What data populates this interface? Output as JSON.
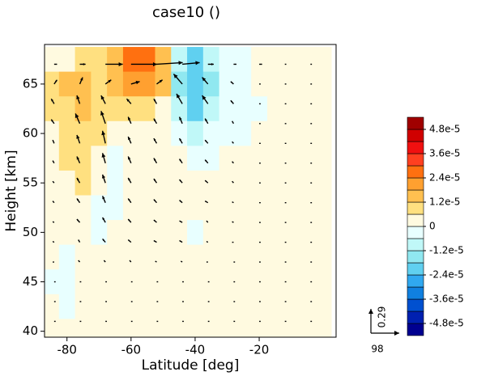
{
  "chart_data": {
    "type": "contour-vector",
    "title": "case10 ()",
    "xlabel": "Latitude [deg]",
    "ylabel": "Height [km]",
    "xlim": [
      -87,
      4
    ],
    "ylim": [
      39.4,
      69
    ],
    "xticks": [
      -80,
      -60,
      -40,
      -20
    ],
    "yticks": [
      40,
      45,
      50,
      55,
      60,
      65
    ],
    "field": {
      "x": [
        -85,
        -80,
        -75,
        -70,
        -65,
        -60,
        -55,
        -50,
        -45,
        -40,
        -35,
        -30,
        -25,
        -20,
        -15,
        -10,
        -5,
        0
      ],
      "y": [
        67.5,
        65,
        62.5,
        60,
        57.5,
        55,
        52.5,
        50,
        47.5,
        45,
        42.5,
        40
      ],
      "values": [
        [
          3e-06,
          3e-06,
          8e-06,
          8e-06,
          1.5e-05,
          2.6e-05,
          2.8e-05,
          1.5e-05,
          -8e-06,
          -2e-05,
          -8e-06,
          -3e-06,
          -3e-06,
          3e-06,
          3e-06,
          3e-06,
          3e-06,
          3e-06
        ],
        [
          1e-05,
          1.3e-05,
          1.5e-05,
          8e-06,
          1.5e-05,
          2e-05,
          2.2e-05,
          1.2e-05,
          -1.5e-05,
          -2.4e-05,
          -1.3e-05,
          -5e-06,
          -3e-06,
          3e-06,
          3e-06,
          3e-06,
          3e-06,
          3e-06
        ],
        [
          8e-06,
          1e-05,
          1.3e-05,
          8e-06,
          8e-06,
          1e-05,
          8e-06,
          3e-06,
          -8e-06,
          -2e-05,
          -1e-05,
          -3e-06,
          -3e-06,
          -3e-06,
          3e-06,
          3e-06,
          3e-06,
          3e-06
        ],
        [
          3e-06,
          8e-06,
          1e-05,
          8e-06,
          3e-06,
          3e-06,
          3e-06,
          3e-06,
          -3e-06,
          -8e-06,
          -3e-06,
          -3e-06,
          -3e-06,
          3e-06,
          3e-06,
          3e-06,
          3e-06,
          3e-06
        ],
        [
          3e-06,
          8e-06,
          8e-06,
          3e-06,
          -3e-06,
          3e-06,
          3e-06,
          3e-06,
          3e-06,
          -3e-06,
          -3e-06,
          3e-06,
          3e-06,
          3e-06,
          3e-06,
          3e-06,
          3e-06,
          3e-06
        ],
        [
          3e-06,
          3e-06,
          8e-06,
          3e-06,
          -3e-06,
          3e-06,
          3e-06,
          3e-06,
          3e-06,
          3e-06,
          3e-06,
          3e-06,
          3e-06,
          3e-06,
          3e-06,
          3e-06,
          3e-06,
          3e-06
        ],
        [
          3e-06,
          3e-06,
          3e-06,
          -3e-06,
          -3e-06,
          3e-06,
          3e-06,
          3e-06,
          3e-06,
          3e-06,
          3e-06,
          3e-06,
          3e-06,
          3e-06,
          3e-06,
          3e-06,
          3e-06,
          3e-06
        ],
        [
          3e-06,
          3e-06,
          3e-06,
          -3e-06,
          3e-06,
          3e-06,
          3e-06,
          3e-06,
          3e-06,
          -3e-06,
          3e-06,
          3e-06,
          3e-06,
          3e-06,
          3e-06,
          3e-06,
          3e-06,
          3e-06
        ],
        [
          3e-06,
          -3e-06,
          3e-06,
          3e-06,
          3e-06,
          3e-06,
          3e-06,
          3e-06,
          3e-06,
          3e-06,
          3e-06,
          3e-06,
          3e-06,
          3e-06,
          3e-06,
          3e-06,
          3e-06,
          3e-06
        ],
        [
          -3e-06,
          -3e-06,
          3e-06,
          3e-06,
          3e-06,
          3e-06,
          3e-06,
          3e-06,
          3e-06,
          3e-06,
          3e-06,
          3e-06,
          3e-06,
          3e-06,
          3e-06,
          3e-06,
          3e-06,
          3e-06
        ],
        [
          3e-06,
          -3e-06,
          3e-06,
          3e-06,
          3e-06,
          3e-06,
          3e-06,
          3e-06,
          3e-06,
          3e-06,
          3e-06,
          3e-06,
          3e-06,
          3e-06,
          3e-06,
          3e-06,
          3e-06,
          3e-06
        ],
        [
          3e-06,
          3e-06,
          3e-06,
          3e-06,
          3e-06,
          3e-06,
          3e-06,
          3e-06,
          3e-06,
          3e-06,
          3e-06,
          3e-06,
          3e-06,
          3e-06,
          3e-06,
          3e-06,
          3e-06,
          3e-06
        ]
      ]
    },
    "colorbar": {
      "levels": [
        -5.4e-05,
        -4.8e-05,
        -4.2e-05,
        -3.6e-05,
        -3e-05,
        -2.4e-05,
        -1.8e-05,
        -1.2e-05,
        -6e-06,
        0,
        6e-06,
        1.2e-05,
        1.8e-05,
        2.4e-05,
        3e-05,
        3.6e-05,
        4.2e-05,
        4.8e-05,
        5.4e-05
      ],
      "colors": [
        "#000090",
        "#0020b0",
        "#0050d0",
        "#1080e0",
        "#30a8f0",
        "#60d0f0",
        "#90e8f0",
        "#c0f8f8",
        "#e8ffff",
        "#fffae0",
        "#ffe080",
        "#ffc050",
        "#ffa030",
        "#ff7010",
        "#ff4020",
        "#f01010",
        "#d00000",
        "#a00000"
      ],
      "ticks": [
        {
          "value": 4.8e-05,
          "label": "4.8e-5"
        },
        {
          "value": 3.6e-05,
          "label": "3.6e-5"
        },
        {
          "value": 2.4e-05,
          "label": "2.4e-5"
        },
        {
          "value": 1.2e-05,
          "label": "1.2e-5"
        },
        0,
        {
          "value": -1.2e-05,
          "label": "-1.2e-5"
        },
        {
          "value": -2.4e-05,
          "label": "-2.4e-5"
        },
        {
          "value": -3.6e-05,
          "label": "-3.6e-5"
        },
        {
          "value": -4.8e-05,
          "label": "-4.8e-5"
        }
      ]
    },
    "vectors": {
      "x": [
        -84,
        -76,
        -68,
        -60,
        -52,
        -44,
        -36,
        -28,
        -20,
        -12,
        -4
      ],
      "y": [
        67,
        65,
        63,
        61,
        59,
        57,
        55,
        53,
        51,
        49,
        47,
        45,
        43,
        41
      ],
      "u": [
        [
          10,
          20,
          60,
          90,
          90,
          60,
          20,
          10,
          10,
          5,
          5
        ],
        [
          10,
          10,
          20,
          30,
          20,
          -30,
          -20,
          -10,
          5,
          5,
          5
        ],
        [
          -10,
          -10,
          -15,
          -15,
          -10,
          -20,
          -20,
          -10,
          5,
          5,
          5
        ],
        [
          -10,
          -15,
          -15,
          -10,
          -10,
          -10,
          -10,
          -5,
          5,
          5,
          5
        ],
        [
          -5,
          -10,
          -10,
          -10,
          -10,
          -10,
          -10,
          -5,
          5,
          5,
          5
        ],
        [
          -5,
          -10,
          -10,
          -10,
          -10,
          -10,
          -10,
          -5,
          5,
          5,
          5
        ],
        [
          -5,
          -10,
          -10,
          -10,
          -10,
          -10,
          -10,
          -5,
          5,
          5,
          5
        ],
        [
          -5,
          -10,
          -10,
          -10,
          -10,
          -10,
          -10,
          -5,
          5,
          5,
          5
        ],
        [
          -5,
          -10,
          -10,
          -10,
          -10,
          -10,
          -5,
          -5,
          5,
          5,
          5
        ],
        [
          -5,
          -5,
          -10,
          -10,
          -10,
          -10,
          -5,
          -5,
          5,
          5,
          5
        ],
        [
          -5,
          -5,
          -5,
          -5,
          -5,
          -5,
          -5,
          5,
          5,
          5,
          5
        ],
        [
          5,
          5,
          5,
          5,
          5,
          5,
          5,
          5,
          5,
          5,
          5
        ],
        [
          5,
          5,
          5,
          5,
          5,
          5,
          5,
          5,
          5,
          5,
          5
        ],
        [
          5,
          5,
          5,
          5,
          5,
          5,
          5,
          5,
          5,
          5,
          5
        ]
      ],
      "v": [
        [
          0,
          0,
          0,
          0,
          0.02,
          0.02,
          0,
          0,
          0,
          0,
          0
        ],
        [
          0.05,
          0.08,
          0.05,
          0.03,
          0.05,
          0.12,
          0.08,
          0.03,
          0,
          0,
          0
        ],
        [
          0.06,
          0.1,
          0.1,
          0.06,
          0.06,
          0.12,
          0.1,
          0.04,
          0,
          0,
          0
        ],
        [
          0.05,
          0.12,
          0.15,
          0.08,
          0.06,
          0.08,
          0.06,
          0.03,
          0,
          0,
          0
        ],
        [
          0.04,
          0.1,
          0.15,
          0.08,
          0.06,
          0.06,
          0.04,
          0.02,
          0,
          0,
          0
        ],
        [
          0.03,
          0.08,
          0.12,
          0.08,
          0.06,
          0.05,
          0.04,
          0.02,
          0,
          0,
          0
        ],
        [
          0.02,
          0.06,
          0.1,
          0.06,
          0.05,
          0.04,
          0.03,
          0.02,
          0,
          0,
          0
        ],
        [
          0.02,
          0.05,
          0.08,
          0.05,
          0.04,
          0.03,
          0.02,
          0.01,
          0,
          0,
          0
        ],
        [
          0.01,
          0.04,
          0.06,
          0.04,
          0.03,
          0.02,
          0.02,
          0.01,
          0,
          0,
          0
        ],
        [
          0.01,
          0.03,
          0.04,
          0.03,
          0.02,
          0.02,
          0.01,
          0,
          0,
          0,
          0
        ],
        [
          0,
          0.02,
          0.02,
          0.02,
          0.01,
          0.01,
          0,
          0,
          0,
          0,
          0
        ],
        [
          0,
          0,
          0,
          0,
          0,
          0,
          0,
          0,
          0,
          0,
          0
        ],
        [
          0,
          0,
          0,
          0,
          0,
          0,
          0,
          0,
          0,
          0,
          0
        ],
        [
          0,
          0,
          0,
          0,
          0,
          0,
          0,
          0,
          0,
          0,
          0
        ]
      ],
      "ref_u": 98,
      "ref_v": 0.29
    }
  }
}
